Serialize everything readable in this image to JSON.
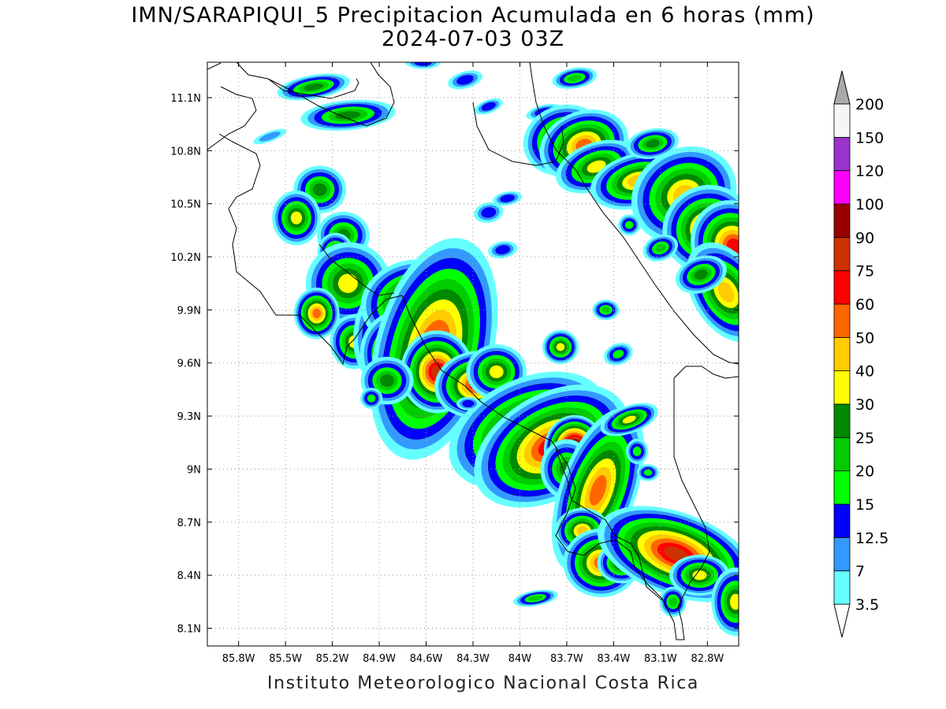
{
  "title": {
    "line1": "IMN/SARAPIQUI_5 Precipitacion Acumulada en 6 horas (mm)",
    "line2": "2024-07-03 03Z"
  },
  "footer": "Instituto Meteorologico Nacional Costa Rica",
  "map": {
    "lon_range": [
      -86.0,
      -82.6
    ],
    "lat_range": [
      8.0,
      11.3
    ],
    "x_ticks": [
      {
        "value": -85.8,
        "label": "85.8W"
      },
      {
        "value": -85.5,
        "label": "85.5W"
      },
      {
        "value": -85.2,
        "label": "85.2W"
      },
      {
        "value": -84.9,
        "label": "84.9W"
      },
      {
        "value": -84.6,
        "label": "84.6W"
      },
      {
        "value": -84.3,
        "label": "84.3W"
      },
      {
        "value": -84.0,
        "label": "84W"
      },
      {
        "value": -83.7,
        "label": "83.7W"
      },
      {
        "value": -83.4,
        "label": "83.4W"
      },
      {
        "value": -83.1,
        "label": "83.1W"
      },
      {
        "value": -82.8,
        "label": "82.8W"
      }
    ],
    "y_ticks": [
      {
        "value": 11.1,
        "label": "11.1N"
      },
      {
        "value": 10.8,
        "label": "10.8N"
      },
      {
        "value": 10.5,
        "label": "10.5N"
      },
      {
        "value": 10.2,
        "label": "10.2N"
      },
      {
        "value": 9.9,
        "label": "9.9N"
      },
      {
        "value": 9.6,
        "label": "9.6N"
      },
      {
        "value": 9.3,
        "label": "9.3N"
      },
      {
        "value": 9.0,
        "label": "9N"
      },
      {
        "value": 8.7,
        "label": "8.7N"
      },
      {
        "value": 8.4,
        "label": "8.4N"
      },
      {
        "value": 8.1,
        "label": "8.1N"
      }
    ],
    "grid": true
  },
  "colorbar": {
    "levels": [
      {
        "label": "3.5",
        "color": "#66ffff"
      },
      {
        "label": "7",
        "color": "#3399ff"
      },
      {
        "label": "12.5",
        "color": "#0000ff"
      },
      {
        "label": "15",
        "color": "#00ff00"
      },
      {
        "label": "20",
        "color": "#00cc00"
      },
      {
        "label": "25",
        "color": "#008800"
      },
      {
        "label": "30",
        "color": "#ffff00"
      },
      {
        "label": "40",
        "color": "#ffcc00"
      },
      {
        "label": "50",
        "color": "#ff6600"
      },
      {
        "label": "60",
        "color": "#ff0000"
      },
      {
        "label": "75",
        "color": "#cc3300"
      },
      {
        "label": "90",
        "color": "#990000"
      },
      {
        "label": "100",
        "color": "#ff00ff"
      },
      {
        "label": "120",
        "color": "#9933cc"
      },
      {
        "label": "150",
        "color": "#f5f5f5"
      },
      {
        "label": "200",
        "color": "#aaaaaa"
      }
    ]
  },
  "precip_cells": [
    {
      "lon": -85.32,
      "lat": 11.16,
      "rx": 0.07,
      "ry": 0.02,
      "level": 5,
      "angle": -10
    },
    {
      "lon": -85.1,
      "lat": 11.0,
      "rx": 0.09,
      "ry": 0.025,
      "level": 5,
      "angle": -5
    },
    {
      "lon": -84.62,
      "lat": 11.3,
      "rx": 0.06,
      "ry": 0.02,
      "level": 2,
      "angle": 0
    },
    {
      "lon": -84.35,
      "lat": 11.2,
      "rx": 0.06,
      "ry": 0.025,
      "level": 2,
      "angle": -15
    },
    {
      "lon": -84.2,
      "lat": 11.05,
      "rx": 0.05,
      "ry": 0.02,
      "level": 2,
      "angle": -20
    },
    {
      "lon": -83.85,
      "lat": 11.02,
      "rx": 0.06,
      "ry": 0.02,
      "level": 2,
      "angle": -15
    },
    {
      "lon": -83.65,
      "lat": 11.21,
      "rx": 0.05,
      "ry": 0.02,
      "level": 4,
      "angle": -10
    },
    {
      "lon": -83.72,
      "lat": 10.86,
      "rx": 0.06,
      "ry": 0.045,
      "level": 7,
      "angle": -20
    },
    {
      "lon": -83.59,
      "lat": 10.83,
      "rx": 0.06,
      "ry": 0.04,
      "level": 8,
      "angle": -20
    },
    {
      "lon": -83.51,
      "lat": 10.71,
      "rx": 0.07,
      "ry": 0.035,
      "level": 6,
      "angle": -20
    },
    {
      "lon": -83.25,
      "lat": 10.63,
      "rx": 0.07,
      "ry": 0.035,
      "level": 7,
      "angle": -15
    },
    {
      "lon": -83.15,
      "lat": 10.84,
      "rx": 0.05,
      "ry": 0.025,
      "level": 5,
      "angle": -10
    },
    {
      "lon": -82.95,
      "lat": 10.55,
      "rx": 0.08,
      "ry": 0.06,
      "level": 7,
      "angle": -30
    },
    {
      "lon": -82.8,
      "lat": 10.36,
      "rx": 0.06,
      "ry": 0.05,
      "level": 8,
      "angle": -30
    },
    {
      "lon": -82.63,
      "lat": 10.26,
      "rx": 0.05,
      "ry": 0.05,
      "level": 9,
      "angle": -30
    },
    {
      "lon": -82.68,
      "lat": 10.0,
      "rx": 0.05,
      "ry": 0.07,
      "level": 7,
      "angle": -30
    },
    {
      "lon": -82.84,
      "lat": 10.1,
      "rx": 0.05,
      "ry": 0.03,
      "level": 5,
      "angle": -20
    },
    {
      "lon": -83.1,
      "lat": 10.25,
      "rx": 0.04,
      "ry": 0.025,
      "level": 4,
      "angle": -20
    },
    {
      "lon": -83.3,
      "lat": 10.38,
      "rx": 0.03,
      "ry": 0.025,
      "level": 3,
      "angle": 0
    },
    {
      "lon": -84.2,
      "lat": 10.45,
      "rx": 0.05,
      "ry": 0.03,
      "level": 2,
      "angle": -10
    },
    {
      "lon": -84.08,
      "lat": 10.53,
      "rx": 0.05,
      "ry": 0.02,
      "level": 2,
      "angle": -10
    },
    {
      "lon": -84.11,
      "lat": 10.24,
      "rx": 0.05,
      "ry": 0.025,
      "level": 2,
      "angle": -10
    },
    {
      "lon": -85.6,
      "lat": 10.88,
      "rx": 0.08,
      "ry": 0.02,
      "level": 1,
      "angle": -20
    },
    {
      "lon": -85.28,
      "lat": 10.58,
      "rx": 0.05,
      "ry": 0.04,
      "level": 5,
      "angle": 0
    },
    {
      "lon": -85.43,
      "lat": 10.42,
      "rx": 0.04,
      "ry": 0.04,
      "level": 6,
      "angle": 0
    },
    {
      "lon": -85.13,
      "lat": 10.32,
      "rx": 0.05,
      "ry": 0.04,
      "level": 5,
      "angle": 0
    },
    {
      "lon": -85.18,
      "lat": 10.22,
      "rx": 0.03,
      "ry": 0.03,
      "level": 6,
      "angle": 0
    },
    {
      "lon": -85.1,
      "lat": 10.05,
      "rx": 0.07,
      "ry": 0.06,
      "level": 6,
      "angle": -20
    },
    {
      "lon": -85.3,
      "lat": 9.88,
      "rx": 0.03,
      "ry": 0.03,
      "level": 8,
      "angle": 0
    },
    {
      "lon": -85.06,
      "lat": 9.72,
      "rx": 0.04,
      "ry": 0.04,
      "level": 6,
      "angle": 0
    },
    {
      "lon": -84.83,
      "lat": 9.78,
      "rx": 0.06,
      "ry": 0.08,
      "level": 6,
      "angle": 10
    },
    {
      "lon": -84.68,
      "lat": 9.94,
      "rx": 0.07,
      "ry": 0.05,
      "level": 8,
      "angle": -10
    },
    {
      "lon": -84.78,
      "lat": 9.65,
      "rx": 0.05,
      "ry": 0.05,
      "level": 8,
      "angle": 0
    },
    {
      "lon": -84.55,
      "lat": 9.68,
      "rx": 0.07,
      "ry": 0.12,
      "level": 9,
      "angle": 15
    },
    {
      "lon": -84.53,
      "lat": 9.55,
      "rx": 0.04,
      "ry": 0.04,
      "level": 10,
      "angle": 0
    },
    {
      "lon": -84.28,
      "lat": 9.48,
      "rx": 0.05,
      "ry": 0.035,
      "level": 9,
      "angle": -10
    },
    {
      "lon": -84.15,
      "lat": 9.55,
      "rx": 0.05,
      "ry": 0.04,
      "level": 6,
      "angle": 0
    },
    {
      "lon": -84.85,
      "lat": 9.5,
      "rx": 0.05,
      "ry": 0.04,
      "level": 5,
      "angle": 0
    },
    {
      "lon": -83.95,
      "lat": 9.22,
      "rx": 0.11,
      "ry": 0.06,
      "level": 8,
      "angle": -25
    },
    {
      "lon": -83.8,
      "lat": 9.13,
      "rx": 0.1,
      "ry": 0.055,
      "level": 9,
      "angle": -30
    },
    {
      "lon": -83.65,
      "lat": 9.11,
      "rx": 0.025,
      "ry": 0.025,
      "level": 14,
      "angle": 0
    },
    {
      "lon": -83.7,
      "lat": 9.0,
      "rx": 0.05,
      "ry": 0.05,
      "level": 5,
      "angle": 0
    },
    {
      "lon": -83.5,
      "lat": 8.88,
      "rx": 0.05,
      "ry": 0.1,
      "level": 8,
      "angle": 20
    },
    {
      "lon": -83.6,
      "lat": 8.65,
      "rx": 0.04,
      "ry": 0.03,
      "level": 7,
      "angle": 0
    },
    {
      "lon": -83.48,
      "lat": 8.47,
      "rx": 0.05,
      "ry": 0.04,
      "level": 8,
      "angle": 0
    },
    {
      "lon": -83.35,
      "lat": 8.47,
      "rx": 0.04,
      "ry": 0.03,
      "level": 6,
      "angle": 0
    },
    {
      "lon": -83.3,
      "lat": 9.28,
      "rx": 0.05,
      "ry": 0.02,
      "level": 6,
      "angle": -20
    },
    {
      "lon": -83.0,
      "lat": 8.52,
      "rx": 0.09,
      "ry": 0.04,
      "level": 10,
      "angle": 20
    },
    {
      "lon": -82.85,
      "lat": 8.4,
      "rx": 0.05,
      "ry": 0.03,
      "level": 6,
      "angle": 0
    },
    {
      "lon": -82.62,
      "lat": 8.25,
      "rx": 0.04,
      "ry": 0.05,
      "level": 6,
      "angle": 0
    },
    {
      "lon": -83.02,
      "lat": 8.25,
      "rx": 0.03,
      "ry": 0.03,
      "level": 4,
      "angle": 0
    },
    {
      "lon": -83.9,
      "lat": 8.27,
      "rx": 0.05,
      "ry": 0.015,
      "level": 4,
      "angle": -10
    },
    {
      "lon": -83.74,
      "lat": 9.69,
      "rx": 0.03,
      "ry": 0.025,
      "level": 6,
      "angle": 0
    },
    {
      "lon": -83.45,
      "lat": 9.9,
      "rx": 0.03,
      "ry": 0.02,
      "level": 4,
      "angle": 0
    },
    {
      "lon": -83.37,
      "lat": 9.65,
      "rx": 0.04,
      "ry": 0.025,
      "level": 3,
      "angle": -20
    },
    {
      "lon": -83.18,
      "lat": 8.98,
      "rx": 0.03,
      "ry": 0.02,
      "level": 3,
      "angle": 0
    },
    {
      "lon": -83.25,
      "lat": 9.1,
      "rx": 0.03,
      "ry": 0.03,
      "level": 3,
      "angle": 0
    },
    {
      "lon": -84.33,
      "lat": 9.37,
      "rx": 0.04,
      "ry": 0.02,
      "level": 2,
      "angle": 0
    },
    {
      "lon": -84.95,
      "lat": 9.4,
      "rx": 0.03,
      "ry": 0.025,
      "level": 3,
      "angle": 0
    }
  ]
}
